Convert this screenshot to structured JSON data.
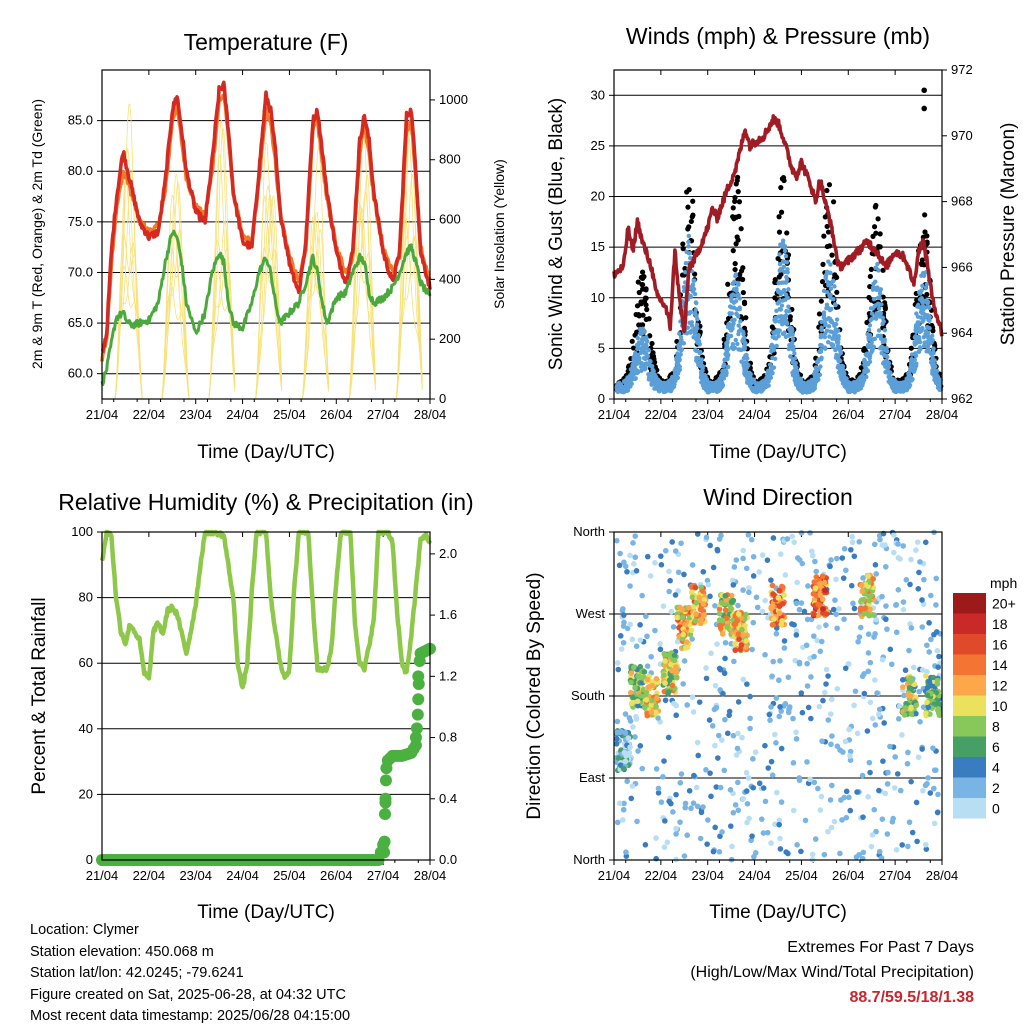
{
  "info": {
    "location": "Location: Clymer",
    "elevation": "Station elevation: 450.068 m",
    "latlon": "Station lat/lon: 42.0245; -79.6241",
    "created": "Figure created on Sat, 2025-06-28, at 04:32 UTC",
    "recent": "Most recent data timestamp: 2025/06/28 04:15:00"
  },
  "extremes": {
    "title": "Extremes For Past 7 Days",
    "subtitle": "(High/Low/Max Wind/Total Precipitation)",
    "values": "88.7/59.5/18/1.38",
    "color": "#c6262e"
  },
  "colors": {
    "red": "#d42a22",
    "orange": "#f07a28",
    "green": "#4aa83c",
    "yellow": "#f7e27a",
    "maroon": "#a01c24",
    "blue": "#5b9fd8",
    "black": "#000000",
    "rh": "#8ec84a",
    "precip": "#4ab040"
  },
  "chart_data": [
    {
      "type": "line",
      "title": "Temperature (F)",
      "xlabel": "Time (Day/UTC)",
      "ylabel": "2m & 9m T (Red, Orange) & 2m Td (Green)",
      "y2label": "Solar Insolation (Yellow)",
      "xticks": [
        "21/04",
        "22/04",
        "23/04",
        "24/04",
        "25/04",
        "26/04",
        "27/04",
        "28/04"
      ],
      "ylim": [
        57.5,
        90.0
      ],
      "yticks": [
        "60.0",
        "65.0",
        "70.0",
        "75.0",
        "80.0",
        "85.0"
      ],
      "y2lim": [
        0,
        1100
      ],
      "y2ticks": [
        "0",
        "200",
        "400",
        "600",
        "800",
        "1000"
      ],
      "x": [
        0,
        0.1,
        0.2,
        0.3,
        0.45,
        0.55,
        0.65,
        0.8,
        1.0,
        1.2,
        1.35,
        1.5,
        1.6,
        1.7,
        1.8,
        2.0,
        2.2,
        2.35,
        2.5,
        2.6,
        2.7,
        2.8,
        3.0,
        3.2,
        3.35,
        3.5,
        3.6,
        3.7,
        3.8,
        4.0,
        4.2,
        4.35,
        4.5,
        4.6,
        4.7,
        4.8,
        5.0,
        5.2,
        5.35,
        5.5,
        5.6,
        5.7,
        5.8,
        6.0,
        6.2,
        6.35,
        6.5,
        6.6,
        6.7,
        6.8,
        7.0
      ],
      "series": [
        {
          "name": "2m T",
          "color": "red",
          "values": [
            62,
            64,
            72,
            77,
            82,
            80,
            78,
            75,
            73.5,
            74,
            79,
            86,
            87.5,
            84,
            80,
            76,
            75,
            81,
            88,
            88.5,
            84,
            78,
            73,
            72.5,
            80,
            87.5,
            86,
            82,
            76,
            71,
            68,
            73,
            85,
            86,
            82,
            78,
            72,
            69,
            72,
            83,
            85.5,
            83,
            78,
            72,
            69,
            72,
            85.5,
            86,
            80,
            72,
            68.5
          ]
        },
        {
          "name": "9m T",
          "color": "orange",
          "values": [
            61.5,
            63.5,
            71,
            76,
            80,
            79,
            77.5,
            75,
            74,
            74.5,
            78,
            85,
            86.5,
            83,
            79.5,
            76.5,
            75.5,
            80,
            87,
            87.5,
            83.5,
            78,
            73.5,
            73,
            79,
            86,
            85,
            81,
            76,
            71.5,
            69,
            72.5,
            84,
            85,
            81,
            77.5,
            72.5,
            70,
            71.5,
            82,
            84.5,
            82,
            77.5,
            72.5,
            70,
            71.5,
            84,
            85,
            79.5,
            72.5,
            69
          ]
        },
        {
          "name": "2m Td",
          "color": "green",
          "values": [
            59,
            60.5,
            63,
            65.5,
            66,
            65,
            64.8,
            65,
            65.3,
            67,
            71,
            74,
            73.5,
            71,
            67,
            64,
            66,
            70,
            72,
            71,
            67,
            65,
            64.5,
            67,
            70,
            71.5,
            70,
            67,
            65,
            66,
            67,
            69,
            71.5,
            70,
            67,
            65,
            67.5,
            68,
            70,
            71.5,
            71,
            68,
            67,
            67.5,
            68.5,
            70,
            72,
            72.5,
            71,
            69,
            67.5
          ]
        }
      ],
      "solar_peaks": [
        1000,
        860,
        1010,
        1020,
        1005,
        1000,
        1040
      ]
    },
    {
      "type": "line",
      "title": "Winds (mph) & Pressure (mb)",
      "xlabel": "Time (Day/UTC)",
      "ylabel": "Sonic Wind & Gust (Blue, Black)",
      "y2label": "Station Pressure (Maroon)",
      "xticks": [
        "21/04",
        "22/04",
        "23/04",
        "24/04",
        "25/04",
        "26/04",
        "27/04",
        "28/04"
      ],
      "ylim": [
        0,
        32.5
      ],
      "yticks": [
        "0",
        "5",
        "10",
        "15",
        "20",
        "25",
        "30"
      ],
      "y2lim": [
        962,
        972
      ],
      "y2ticks": [
        "962",
        "964",
        "966",
        "968",
        "970",
        "972"
      ],
      "pressure": {
        "x": [
          0,
          0.2,
          0.3,
          0.4,
          0.5,
          0.6,
          0.8,
          0.9,
          1.0,
          1.1,
          1.2,
          1.3,
          1.4,
          1.5,
          1.6,
          1.7,
          1.8,
          2.0,
          2.1,
          2.2,
          2.4,
          2.6,
          2.8,
          2.9,
          3.0,
          3.2,
          3.4,
          3.5,
          3.6,
          3.8,
          3.9,
          4.0,
          4.2,
          4.3,
          4.4,
          4.5,
          4.6,
          4.8,
          5.0,
          5.2,
          5.3,
          5.4,
          5.6,
          5.8,
          6.0,
          6.2,
          6.4,
          6.5,
          6.6,
          6.7,
          6.8,
          6.9,
          7.0
        ],
        "values": [
          965.8,
          966.0,
          967.2,
          966.5,
          967.4,
          966.8,
          966.0,
          965.2,
          965.0,
          964.8,
          964.2,
          966.5,
          965.0,
          964.0,
          966.0,
          966.2,
          966.5,
          967.2,
          967.8,
          967.5,
          968.3,
          969.0,
          970.2,
          969.7,
          969.8,
          970.0,
          970.5,
          970.4,
          970.0,
          969.0,
          968.8,
          969.2,
          968.5,
          968.0,
          968.7,
          968.0,
          967.5,
          966.0,
          966.2,
          966.5,
          966.6,
          966.8,
          966.5,
          966.0,
          966.5,
          966.3,
          965.5,
          966.5,
          966.8,
          966.0,
          965.0,
          964.5,
          964.0
        ]
      },
      "wind_daily_peak": [
        8,
        18,
        14,
        18,
        16,
        15,
        15
      ],
      "gust_daily_peak": [
        13,
        22,
        22,
        21,
        22,
        19,
        18
      ],
      "gust_outliers": [
        30.5,
        28.7
      ]
    },
    {
      "type": "line",
      "title": "Relative Humidity (%) & Precipitation (in)",
      "xlabel": "Time (Day/UTC)",
      "ylabel": "Percent & Total Rainfall",
      "xticks": [
        "21/04",
        "22/04",
        "23/04",
        "24/04",
        "25/04",
        "26/04",
        "27/04",
        "28/04"
      ],
      "ylim": [
        0,
        100
      ],
      "yticks": [
        "0",
        "20",
        "40",
        "60",
        "80",
        "100"
      ],
      "y2lim": [
        0,
        2.143
      ],
      "y2ticks": [
        "0.0",
        "0.4",
        "0.8",
        "1.2",
        "1.6",
        "2.0"
      ],
      "rh": {
        "x": [
          0,
          0.1,
          0.2,
          0.3,
          0.4,
          0.5,
          0.6,
          0.8,
          0.9,
          1.0,
          1.1,
          1.2,
          1.3,
          1.4,
          1.5,
          1.6,
          1.7,
          1.8,
          1.9,
          2.0,
          2.1,
          2.2,
          2.3,
          2.4,
          2.6,
          2.8,
          2.9,
          3.0,
          3.1,
          3.2,
          3.3,
          3.4,
          3.5,
          3.6,
          3.8,
          3.9,
          4.0,
          4.1,
          4.2,
          4.3,
          4.4,
          4.5,
          4.6,
          4.8,
          4.9,
          5.0,
          5.1,
          5.2,
          5.3,
          5.4,
          5.5,
          5.6,
          5.8,
          5.9,
          6.0,
          6.1,
          6.2,
          6.3,
          6.4,
          6.5,
          6.6,
          6.8,
          6.9,
          7.0
        ],
        "values": [
          91,
          100,
          99,
          80,
          70,
          66,
          72,
          67,
          57,
          55,
          70,
          72,
          69,
          76,
          77,
          75,
          69,
          63,
          70,
          78,
          90,
          100,
          100,
          100,
          99,
          80,
          60,
          52,
          60,
          82,
          100,
          100,
          100,
          80,
          60,
          56,
          58,
          82,
          100,
          100,
          100,
          78,
          58,
          58,
          65,
          85,
          100,
          100,
          100,
          72,
          60,
          58,
          73,
          100,
          100,
          100,
          97,
          75,
          60,
          57,
          68,
          98,
          99,
          97
        ]
      },
      "precip_total": {
        "x": [
          0,
          5.9,
          6.0,
          6.1,
          6.2,
          6.4,
          6.6,
          6.7,
          6.75,
          6.8,
          7.0
        ],
        "values": [
          0,
          0,
          0.1,
          0.65,
          0.68,
          0.68,
          0.7,
          0.75,
          1.2,
          1.35,
          1.38
        ]
      }
    },
    {
      "type": "scatter",
      "title": "Wind Direction",
      "xlabel": "Time (Day/UTC)",
      "ylabel": "Direction (Colored By Speed)",
      "xticks": [
        "21/04",
        "22/04",
        "23/04",
        "24/04",
        "25/04",
        "26/04",
        "27/04",
        "28/04"
      ],
      "yticks": [
        "North",
        "East",
        "South",
        "West",
        "North"
      ],
      "ylim": [
        0,
        360
      ],
      "legend_title": "mph",
      "legend": [
        "20+",
        "18",
        "16",
        "14",
        "12",
        "10",
        "8",
        "6",
        "4",
        "2",
        "0"
      ],
      "legend_colors": [
        "#9e1a1a",
        "#c92a27",
        "#e04a2a",
        "#f47434",
        "#fba74a",
        "#ece15c",
        "#88c75a",
        "#46a066",
        "#3a7cc0",
        "#78b4e4",
        "#b8def3"
      ],
      "clusters": [
        {
          "x": 0.2,
          "dir": 120,
          "speed": 3
        },
        {
          "x": 0.5,
          "dir": 190,
          "speed": 8
        },
        {
          "x": 0.8,
          "dir": 180,
          "speed": 11
        },
        {
          "x": 1.2,
          "dir": 205,
          "speed": 10
        },
        {
          "x": 1.5,
          "dir": 255,
          "speed": 12
        },
        {
          "x": 1.8,
          "dir": 280,
          "speed": 12
        },
        {
          "x": 2.4,
          "dir": 270,
          "speed": 10
        },
        {
          "x": 2.7,
          "dir": 250,
          "speed": 12
        },
        {
          "x": 3.5,
          "dir": 280,
          "speed": 13
        },
        {
          "x": 4.4,
          "dir": 290,
          "speed": 14
        },
        {
          "x": 5.4,
          "dir": 290,
          "speed": 11
        },
        {
          "x": 6.3,
          "dir": 180,
          "speed": 8
        },
        {
          "x": 6.8,
          "dir": 180,
          "speed": 7
        }
      ]
    }
  ]
}
